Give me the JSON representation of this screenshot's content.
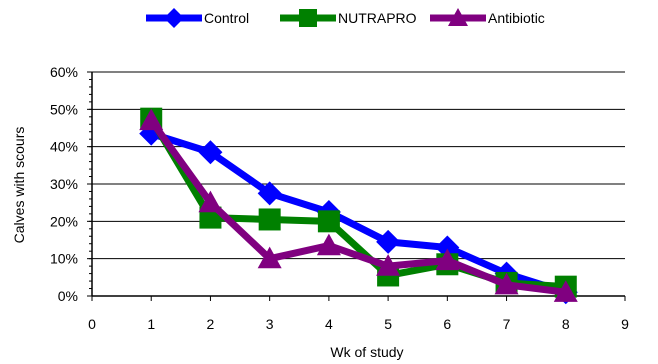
{
  "chart_data": {
    "type": "line",
    "title": "",
    "xlabel": "Wk of study",
    "ylabel": "Calves with scours",
    "xlim": [
      0,
      9
    ],
    "ylim": [
      0,
      60
    ],
    "x_ticks": [
      "0",
      "1",
      "2",
      "3",
      "4",
      "5",
      "6",
      "7",
      "8",
      "9"
    ],
    "y_ticks": [
      "0%",
      "10%",
      "20%",
      "30%",
      "40%",
      "50%",
      "60%"
    ],
    "y_tick_values": [
      0,
      10,
      20,
      30,
      40,
      50,
      60
    ],
    "grid": "horizontal",
    "legend_position": "top",
    "x": [
      1,
      2,
      3,
      4,
      5,
      6,
      7,
      8
    ],
    "series": [
      {
        "name": "Control",
        "color": "#0000ff",
        "marker": "diamond",
        "values": [
          43.5,
          38.5,
          27.5,
          22.5,
          14.5,
          13.0,
          6.0,
          1.0
        ]
      },
      {
        "name": "NUTRAPRO",
        "color": "#008000",
        "marker": "square",
        "values": [
          47.5,
          21.0,
          20.5,
          20.0,
          5.5,
          8.5,
          3.5,
          2.5
        ]
      },
      {
        "name": "Antibiotic",
        "color": "#800080",
        "marker": "triangle",
        "values": [
          47.0,
          25.0,
          10.0,
          13.5,
          8.0,
          9.5,
          3.0,
          1.0
        ]
      }
    ]
  }
}
